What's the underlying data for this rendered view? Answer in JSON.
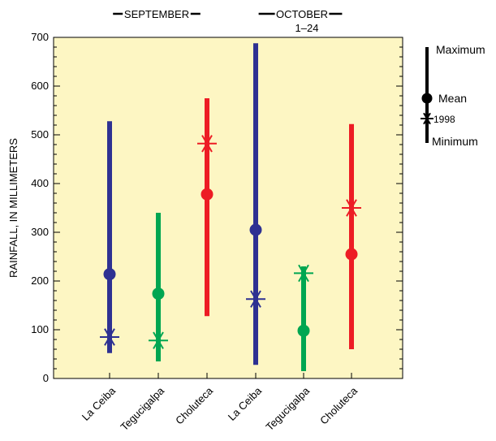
{
  "chart_data": {
    "type": "range",
    "ylabel": "RAINFALL, IN MILLIMETERS",
    "ylim": [
      0,
      700
    ],
    "yticks": [
      "0",
      "100",
      "200",
      "300",
      "400",
      "500",
      "600",
      "700"
    ],
    "grid": false,
    "groups": [
      {
        "label": "SEPTEMBER",
        "sublabel": ""
      },
      {
        "label": "OCTOBER",
        "sublabel": "1–24"
      }
    ],
    "categories": [
      "La Ceiba",
      "Tegucigalpa",
      "Choluteca",
      "La Ceiba",
      "Tegucigalpa",
      "Choluteca"
    ],
    "colors": [
      "#2e3192",
      "#00a651",
      "#ed1c24",
      "#2e3192",
      "#00a651",
      "#ed1c24"
    ],
    "plot_background": "#fdf6c3",
    "series": [
      {
        "group": 0,
        "category": "La Ceiba",
        "min": 52,
        "max": 528,
        "mean": 214,
        "y1998": 85
      },
      {
        "group": 0,
        "category": "Tegucigalpa",
        "min": 35,
        "max": 340,
        "mean": 174,
        "y1998": 78
      },
      {
        "group": 0,
        "category": "Choluteca",
        "min": 128,
        "max": 575,
        "mean": 378,
        "y1998": 482
      },
      {
        "group": 1,
        "category": "La Ceiba",
        "min": 28,
        "max": 688,
        "mean": 305,
        "y1998": 163
      },
      {
        "group": 1,
        "category": "Tegucigalpa",
        "min": 15,
        "max": 230,
        "mean": 98,
        "y1998": 216
      },
      {
        "group": 1,
        "category": "Choluteca",
        "min": 60,
        "max": 522,
        "mean": 255,
        "y1998": 350
      }
    ],
    "legend": {
      "position": "top-right",
      "maximum": "Maximum",
      "mean": "Mean",
      "y1998": "1998",
      "minimum": "Minimum"
    }
  }
}
